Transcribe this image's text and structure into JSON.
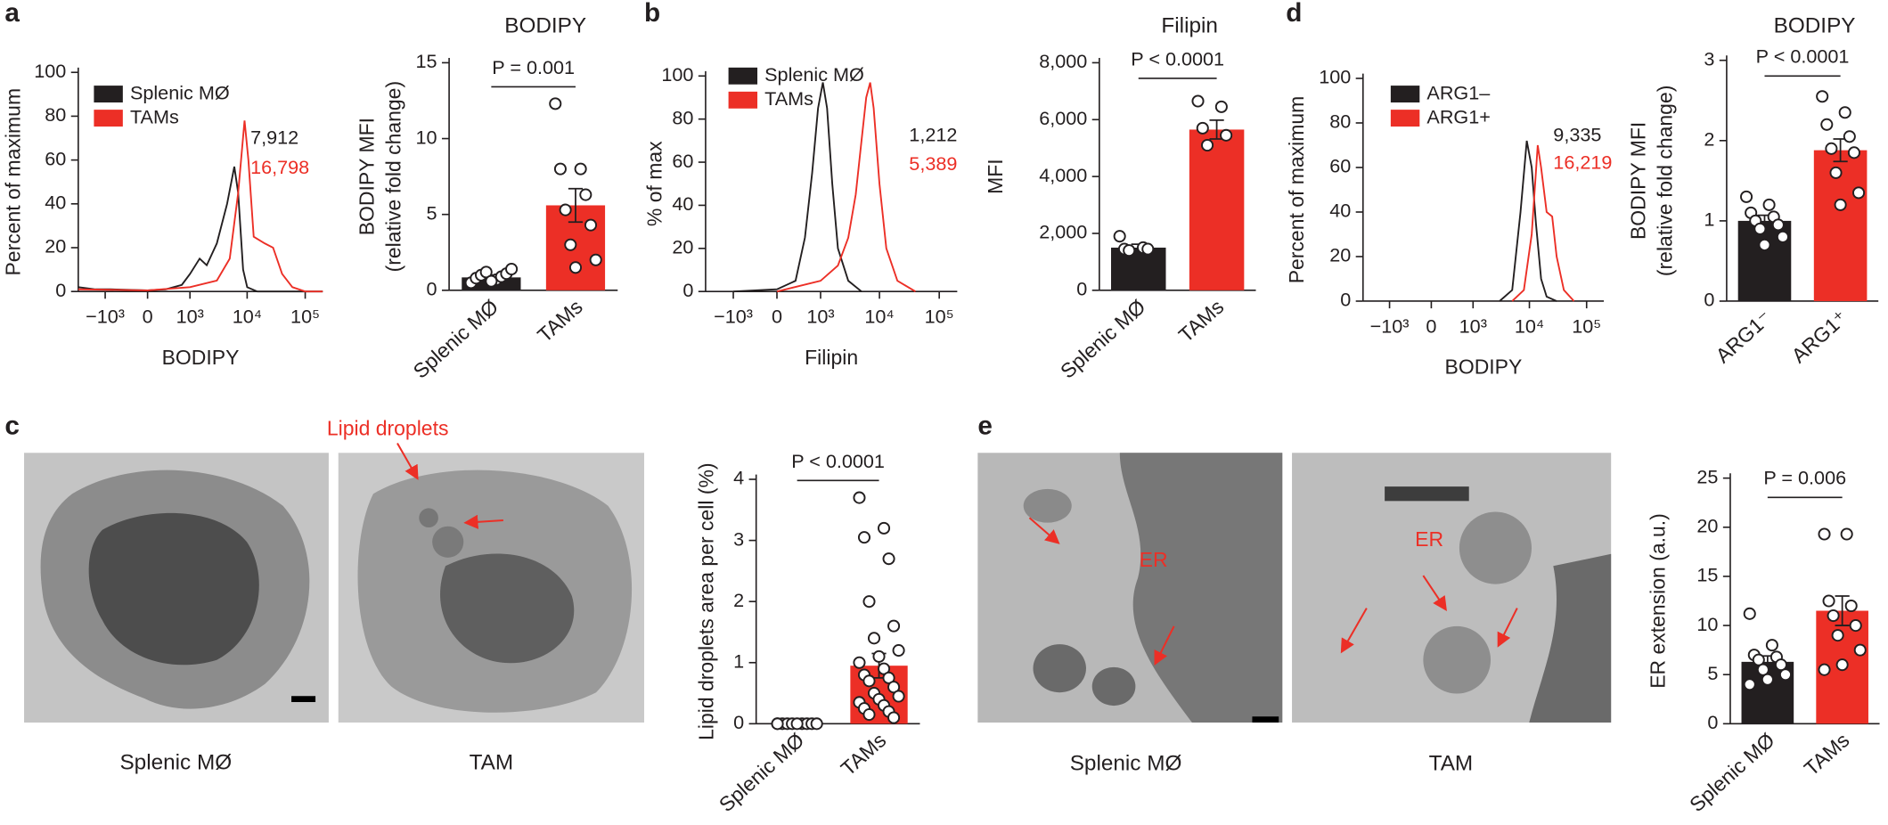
{
  "panels": [
    "a",
    "b",
    "c",
    "d",
    "e"
  ],
  "images": [
    {
      "caption": "Splenic MØ"
    },
    {
      "caption": "TAM",
      "annotation": "Lipid droplets"
    },
    {
      "caption": "Splenic MØ",
      "annotation": "ER"
    },
    {
      "caption": "TAM",
      "annotation": "ER"
    }
  ],
  "chart_data": [
    {
      "type": "line",
      "xlabel": "BODIPY",
      "ylabel": "Percent of maximum",
      "xscale": "biexponential",
      "xlim": [
        -3000,
        200000
      ],
      "ylim": [
        0,
        100
      ],
      "xticks": [
        {
          "value": -1000,
          "label": "−10³"
        },
        0,
        {
          "value": 1000,
          "label": "10³"
        },
        {
          "value": 10000,
          "label": "10⁴"
        },
        {
          "value": 100000,
          "label": "10⁵"
        }
      ],
      "yticks": [
        0,
        20,
        40,
        60,
        80,
        100
      ],
      "legend": "upper left",
      "series": [
        {
          "name": "Splenic MØ",
          "color": "#231f20",
          "x": [
            -3000,
            -1500,
            -800,
            0,
            300,
            700,
            1000,
            1500,
            2000,
            3000,
            4500,
            6000,
            7000,
            8500,
            10000,
            15000,
            200000
          ],
          "values": [
            2,
            1,
            1,
            0.5,
            1,
            3,
            8,
            15,
            12,
            22,
            40,
            57,
            45,
            10,
            2,
            0,
            0
          ]
        },
        {
          "name": "TAMs",
          "color": "#ec2f26",
          "x": [
            -3000,
            0,
            1000,
            3000,
            5000,
            7000,
            9000,
            10500,
            13000,
            20000,
            28000,
            40000,
            60000,
            100000,
            200000
          ],
          "values": [
            1,
            0.5,
            2,
            5,
            15,
            45,
            78,
            60,
            25,
            22,
            20,
            8,
            2,
            0,
            0
          ]
        }
      ],
      "annotations": [
        {
          "text": "7,912",
          "color": "#231f20"
        },
        {
          "text": "16,798",
          "color": "#ec2f26"
        }
      ]
    },
    {
      "type": "bar",
      "title": "BODIPY",
      "ylabel": [
        "BODIPY MFI",
        "(relative fold change)"
      ],
      "categories": [
        "Splenic MØ",
        "TAMs"
      ],
      "values": [
        0.85,
        5.6
      ],
      "errors": [
        0.15,
        1.1
      ],
      "colors": [
        "#231f20",
        "#ec2f26"
      ],
      "points": [
        [
          0.5,
          0.7,
          0.8,
          0.9,
          1.0,
          1.1,
          1.2,
          1.4,
          0.6
        ],
        [
          12.3,
          8.0,
          8.0,
          6.3,
          5.3,
          4.3,
          3.0,
          2.0,
          1.5
        ]
      ],
      "ylim": [
        0,
        15
      ],
      "yticks": [
        0,
        5,
        10,
        15
      ],
      "significance": "P = 0.001"
    },
    {
      "type": "line",
      "xlabel": "Filipin",
      "ylabel": "% of max",
      "xscale": "biexponential",
      "xlim": [
        -3000,
        200000
      ],
      "ylim": [
        0,
        100
      ],
      "xticks": [
        {
          "value": -1000,
          "label": "−10³"
        },
        0,
        {
          "value": 1000,
          "label": "10³"
        },
        {
          "value": 10000,
          "label": "10⁴"
        },
        {
          "value": 100000,
          "label": "10⁵"
        }
      ],
      "yticks": [
        0,
        20,
        40,
        60,
        80,
        100
      ],
      "legend": "upper left",
      "series": [
        {
          "name": "Splenic MØ",
          "color": "#231f20",
          "x": [
            -1000,
            0,
            300,
            500,
            700,
            900,
            1100,
            1300,
            1600,
            2000,
            3000,
            5000
          ],
          "values": [
            0,
            1,
            5,
            25,
            55,
            85,
            97,
            85,
            50,
            20,
            5,
            0
          ]
        },
        {
          "name": "TAMs",
          "color": "#ec2f26",
          "x": [
            0,
            1000,
            2000,
            3000,
            4000,
            5000,
            6000,
            7000,
            8000,
            10000,
            13000,
            20000,
            40000
          ],
          "values": [
            0,
            5,
            12,
            25,
            45,
            70,
            90,
            97,
            85,
            50,
            20,
            5,
            0
          ]
        }
      ],
      "annotations": [
        {
          "text": "1,212",
          "color": "#231f20"
        },
        {
          "text": "5,389",
          "color": "#ec2f26"
        }
      ]
    },
    {
      "type": "bar",
      "title": "Filipin",
      "ylabel": [
        "MFI"
      ],
      "categories": [
        "Splenic MØ",
        "TAMs"
      ],
      "values": [
        1500,
        5650
      ],
      "errors": [
        120,
        330
      ],
      "colors": [
        "#231f20",
        "#ec2f26"
      ],
      "points": [
        [
          1900,
          1500,
          1450,
          1450,
          1400
        ],
        [
          6650,
          6450,
          5700,
          5450,
          5100
        ]
      ],
      "ylim": [
        0,
        8000
      ],
      "yticks": [
        0,
        {
          "value": 2000,
          "label": "2,000"
        },
        {
          "value": 4000,
          "label": "4,000"
        },
        {
          "value": 6000,
          "label": "6,000"
        },
        {
          "value": 8000,
          "label": "8,000"
        }
      ],
      "significance": "P < 0.0001"
    },
    {
      "type": "line",
      "xlabel": "BODIPY",
      "ylabel": "Percent of maximum",
      "xscale": "biexponential",
      "xlim": [
        -3000,
        200000
      ],
      "ylim": [
        0,
        100
      ],
      "xticks": [
        {
          "value": -1000,
          "label": "−10³"
        },
        0,
        {
          "value": 1000,
          "label": "10³"
        },
        {
          "value": 10000,
          "label": "10⁴"
        },
        {
          "value": 100000,
          "label": "10⁵"
        }
      ],
      "yticks": [
        0,
        20,
        40,
        60,
        80,
        100
      ],
      "legend": "upper left",
      "series": [
        {
          "name": "ARG1–",
          "color": "#231f20",
          "x": [
            3000,
            5000,
            7000,
            9000,
            11000,
            13000,
            16000,
            20000,
            30000
          ],
          "values": [
            0,
            5,
            40,
            72,
            60,
            35,
            10,
            2,
            0
          ]
        },
        {
          "name": "ARG1+",
          "color": "#ec2f26",
          "x": [
            5000,
            8000,
            11000,
            14000,
            16000,
            20000,
            25000,
            30000,
            40000,
            60000
          ],
          "values": [
            0,
            5,
            30,
            70,
            60,
            40,
            38,
            20,
            5,
            0
          ]
        }
      ],
      "annotations": [
        {
          "text": "9,335",
          "color": "#231f20"
        },
        {
          "text": "16,219",
          "color": "#ec2f26"
        }
      ]
    },
    {
      "type": "bar",
      "title": "BODIPY",
      "ylabel": [
        "BODIPY MFI",
        "(relative fold change)"
      ],
      "categories": [
        "ARG1⁻",
        "ARG1⁺"
      ],
      "values": [
        1.0,
        1.88
      ],
      "errors": [
        0.07,
        0.14
      ],
      "colors": [
        "#231f20",
        "#ec2f26"
      ],
      "points": [
        [
          1.3,
          1.2,
          1.1,
          1.05,
          1.0,
          0.95,
          0.9,
          0.8,
          0.7
        ],
        [
          2.55,
          2.35,
          2.2,
          2.05,
          1.9,
          1.85,
          1.6,
          1.35,
          1.2
        ]
      ],
      "ylim": [
        0,
        3
      ],
      "yticks": [
        0,
        1,
        2,
        3
      ],
      "significance": "P < 0.0001"
    },
    {
      "type": "bar",
      "ylabel": [
        "Lipid droplets area per cell (%)"
      ],
      "categories": [
        "Splenic MØ",
        "TAMs"
      ],
      "values": [
        0,
        0.95
      ],
      "errors": [
        0,
        0.2
      ],
      "colors": [
        "#231f20",
        "#ec2f26"
      ],
      "points": [
        [
          0,
          0,
          0,
          0,
          0,
          0,
          0,
          0,
          0,
          0
        ],
        [
          3.7,
          3.2,
          3.05,
          2.7,
          2.0,
          1.6,
          1.4,
          1.2,
          1.1,
          1.0,
          0.9,
          0.8,
          0.75,
          0.7,
          0.6,
          0.5,
          0.45,
          0.4,
          0.35,
          0.3,
          0.25,
          0.2,
          0.15,
          0.1
        ]
      ],
      "ylim": [
        0,
        4
      ],
      "yticks": [
        0,
        1,
        2,
        3,
        4
      ],
      "significance": "P < 0.0001"
    },
    {
      "type": "bar",
      "ylabel": [
        "ER extension (a.u.)"
      ],
      "categories": [
        "Splenic MØ",
        "TAMs"
      ],
      "values": [
        6.3,
        11.5
      ],
      "errors": [
        0.6,
        1.5
      ],
      "colors": [
        "#231f20",
        "#ec2f26"
      ],
      "points": [
        [
          11.2,
          8,
          7,
          6.8,
          6.5,
          6,
          5.5,
          5,
          4.5,
          4
        ],
        [
          19.3,
          19.3,
          12.5,
          12,
          11,
          10,
          9,
          7.5,
          6,
          5.5
        ]
      ],
      "ylim": [
        0,
        25
      ],
      "yticks": [
        0,
        5,
        10,
        15,
        20,
        25
      ],
      "significance": "P = 0.006"
    }
  ]
}
